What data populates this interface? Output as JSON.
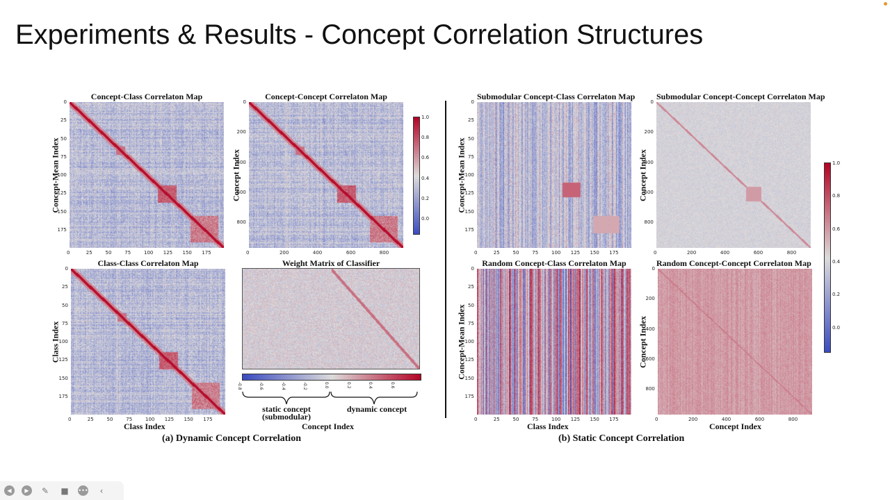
{
  "slide": {
    "title": "Experiments & Results - Concept Correlation Structures"
  },
  "panels": [
    {
      "id": "p1",
      "title": "Concept-Class Correlaton Map",
      "ylabel": "Concept-Mean Index",
      "xlabel": "",
      "xticks": [
        "0",
        "25",
        "50",
        "75",
        "100",
        "125",
        "150",
        "175"
      ],
      "yticks": [
        "0",
        "25",
        "50",
        "75",
        "100",
        "125",
        "150",
        "175"
      ],
      "pattern": "diag"
    },
    {
      "id": "p2",
      "title": "Concept-Concept Correlaton Map",
      "ylabel": "Concept Index",
      "xlabel": "",
      "xticks": [
        "0",
        "200",
        "400",
        "600",
        "800"
      ],
      "yticks": [
        "0",
        "200",
        "400",
        "600",
        "800"
      ],
      "pattern": "diag"
    },
    {
      "id": "p3",
      "title": "Class-Class Correlaton Map",
      "ylabel": "Class Index",
      "xlabel": "Class Index",
      "xticks": [
        "0",
        "25",
        "50",
        "75",
        "100",
        "125",
        "150",
        "175"
      ],
      "yticks": [
        "0",
        "25",
        "50",
        "75",
        "100",
        "125",
        "150",
        "175"
      ],
      "pattern": "diag"
    },
    {
      "id": "p4",
      "title": "Weight Matrix of Classifier",
      "ylabel": "",
      "xlabel": "Concept Index",
      "xticks": [],
      "yticks": [],
      "pattern": "weights"
    },
    {
      "id": "p5",
      "title": "Submodular Concept-Class Correlaton Map",
      "ylabel": "Concept-Mean Index",
      "xlabel": "",
      "xticks": [
        "0",
        "25",
        "50",
        "75",
        "100",
        "125",
        "150",
        "175"
      ],
      "yticks": [
        "0",
        "25",
        "50",
        "75",
        "100",
        "125",
        "150",
        "175"
      ],
      "pattern": "sub"
    },
    {
      "id": "p6",
      "title": "Submodular Concept-Concept Correlaton Map",
      "ylabel": "Concept Index",
      "xlabel": "",
      "xticks": [
        "0",
        "200",
        "400",
        "600",
        "800"
      ],
      "yticks": [
        "0",
        "200",
        "400",
        "600",
        "800"
      ],
      "pattern": "subcc"
    },
    {
      "id": "p7",
      "title": "Random Concept-Class Correlaton Map",
      "ylabel": "Concept-Mean Index",
      "xlabel": "Class Index",
      "xticks": [
        "0",
        "25",
        "50",
        "75",
        "100",
        "125",
        "150",
        "175"
      ],
      "yticks": [
        "0",
        "25",
        "50",
        "75",
        "100",
        "125",
        "150",
        "175"
      ],
      "pattern": "random"
    },
    {
      "id": "p8",
      "title": "Random Concept-Concept Correlaton Map",
      "ylabel": "Concept Index",
      "xlabel": "Concept Index",
      "xticks": [
        "0",
        "200",
        "400",
        "600",
        "800"
      ],
      "yticks": [
        "0",
        "200",
        "400",
        "600",
        "800"
      ],
      "pattern": "randomcc"
    }
  ],
  "colorbars": {
    "left": {
      "ticks": [
        "1.0",
        "0.8",
        "0.6",
        "0.4",
        "0.2",
        "0.0"
      ]
    },
    "right": {
      "ticks": [
        "1.0",
        "0.8",
        "0.6",
        "0.4",
        "0.2",
        "0.0"
      ]
    },
    "weights": {
      "ticks": [
        "-0.8",
        "-0.6",
        "-0.4",
        "-0.2",
        "0.0",
        "0.2",
        "0.4",
        "0.6"
      ]
    }
  },
  "braces": {
    "static_label": "static concept\n(submodular)",
    "dynamic_label": "dynamic concept"
  },
  "captions": {
    "left": "(a) Dynamic Concept Correlation",
    "right": "(b) Static Concept Correlation"
  },
  "colors": {
    "cmap_low": "#3b4cc0",
    "cmap_mid": "#dddcdc",
    "cmap_high": "#b40426"
  },
  "toolbar": {
    "icons": [
      "prev-icon",
      "next-icon",
      "pen-icon",
      "camera-icon",
      "more-icon",
      "back-icon"
    ]
  }
}
